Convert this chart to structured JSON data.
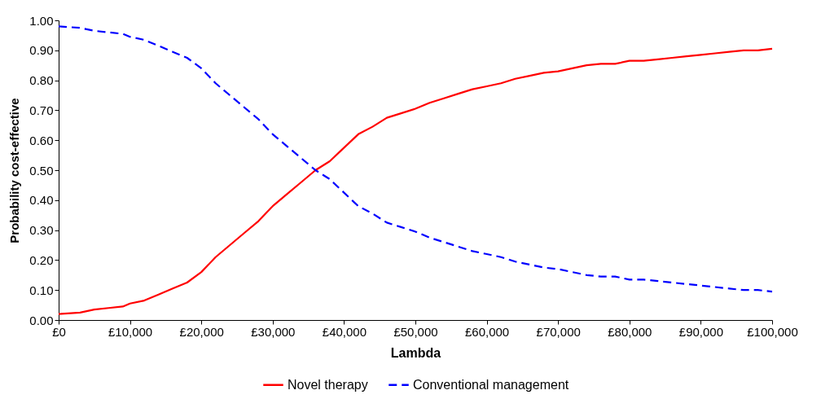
{
  "chart_data": {
    "type": "line",
    "xlabel": "Lambda",
    "ylabel": "Probability cost-effective",
    "x": [
      0,
      3000,
      5000,
      7000,
      9000,
      10000,
      12000,
      14000,
      16000,
      18000,
      20000,
      22000,
      24000,
      26000,
      28000,
      30000,
      32000,
      34000,
      36000,
      38000,
      40000,
      42000,
      44000,
      46000,
      48000,
      50000,
      52000,
      54000,
      56000,
      58000,
      60000,
      62000,
      64000,
      66000,
      68000,
      70000,
      72000,
      74000,
      76000,
      78000,
      80000,
      82000,
      84000,
      86000,
      88000,
      90000,
      92000,
      94000,
      96000,
      98000,
      100000
    ],
    "series": [
      {
        "name": "Novel therapy",
        "color": "#ff0000",
        "line_style": "solid",
        "values": [
          0.02,
          0.025,
          0.035,
          0.04,
          0.045,
          0.055,
          0.065,
          0.085,
          0.105,
          0.125,
          0.16,
          0.21,
          0.25,
          0.29,
          0.33,
          0.38,
          0.42,
          0.46,
          0.5,
          0.53,
          0.575,
          0.62,
          0.645,
          0.675,
          0.69,
          0.705,
          0.725,
          0.74,
          0.755,
          0.77,
          0.78,
          0.79,
          0.805,
          0.815,
          0.825,
          0.83,
          0.84,
          0.85,
          0.855,
          0.855,
          0.865,
          0.865,
          0.87,
          0.875,
          0.88,
          0.885,
          0.89,
          0.895,
          0.9,
          0.9,
          0.905
        ]
      },
      {
        "name": "Conventional management",
        "color": "#0000ff",
        "line_style": "dashed",
        "values": [
          0.98,
          0.975,
          0.965,
          0.96,
          0.955,
          0.945,
          0.935,
          0.915,
          0.895,
          0.875,
          0.84,
          0.79,
          0.75,
          0.71,
          0.67,
          0.62,
          0.58,
          0.54,
          0.5,
          0.47,
          0.425,
          0.38,
          0.355,
          0.325,
          0.31,
          0.295,
          0.275,
          0.26,
          0.245,
          0.23,
          0.22,
          0.21,
          0.195,
          0.185,
          0.175,
          0.17,
          0.16,
          0.15,
          0.145,
          0.145,
          0.135,
          0.135,
          0.13,
          0.125,
          0.12,
          0.115,
          0.11,
          0.105,
          0.1,
          0.1,
          0.095
        ]
      }
    ],
    "xlim": [
      0,
      100000
    ],
    "xticks": [
      {
        "value": 0,
        "label": "£0"
      },
      {
        "value": 10000,
        "label": "£10,000"
      },
      {
        "value": 20000,
        "label": "£20,000"
      },
      {
        "value": 30000,
        "label": "£30,000"
      },
      {
        "value": 40000,
        "label": "£40,000"
      },
      {
        "value": 50000,
        "label": "£50,000"
      },
      {
        "value": 60000,
        "label": "£60,000"
      },
      {
        "value": 70000,
        "label": "£70,000"
      },
      {
        "value": 80000,
        "label": "£80,000"
      },
      {
        "value": 90000,
        "label": "£90,000"
      },
      {
        "value": 100000,
        "label": "£100,000"
      }
    ],
    "ylim": [
      0,
      1
    ],
    "yticks": [
      {
        "value": 0,
        "label": "0.00"
      },
      {
        "value": 0.1,
        "label": "0.10"
      },
      {
        "value": 0.2,
        "label": "0.20"
      },
      {
        "value": 0.3,
        "label": "0.30"
      },
      {
        "value": 0.4,
        "label": "0.40"
      },
      {
        "value": 0.5,
        "label": "0.50"
      },
      {
        "value": 0.6,
        "label": "0.60"
      },
      {
        "value": 0.7,
        "label": "0.70"
      },
      {
        "value": 0.8,
        "label": "0.80"
      },
      {
        "value": 0.9,
        "label": "0.90"
      },
      {
        "value": 1,
        "label": "1.00"
      }
    ],
    "grid": false,
    "legend": "bottom",
    "marker": "none"
  }
}
